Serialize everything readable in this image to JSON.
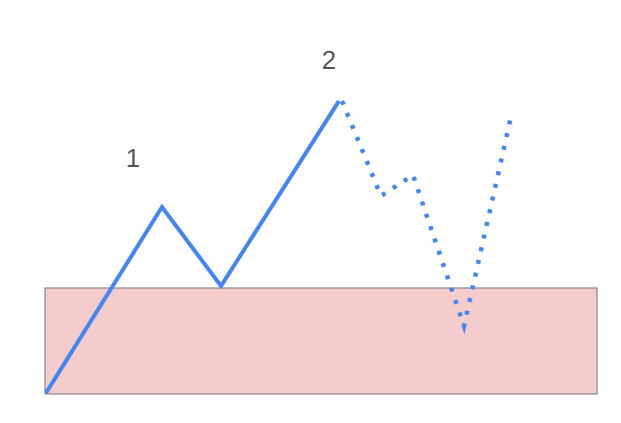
{
  "diagram": {
    "labels": {
      "wave_1": "1",
      "wave_2": "2"
    },
    "colors": {
      "line": "#4285f4",
      "zone_fill": "#f4cccc",
      "zone_stroke": "#888888",
      "label": "#555555"
    }
  }
}
